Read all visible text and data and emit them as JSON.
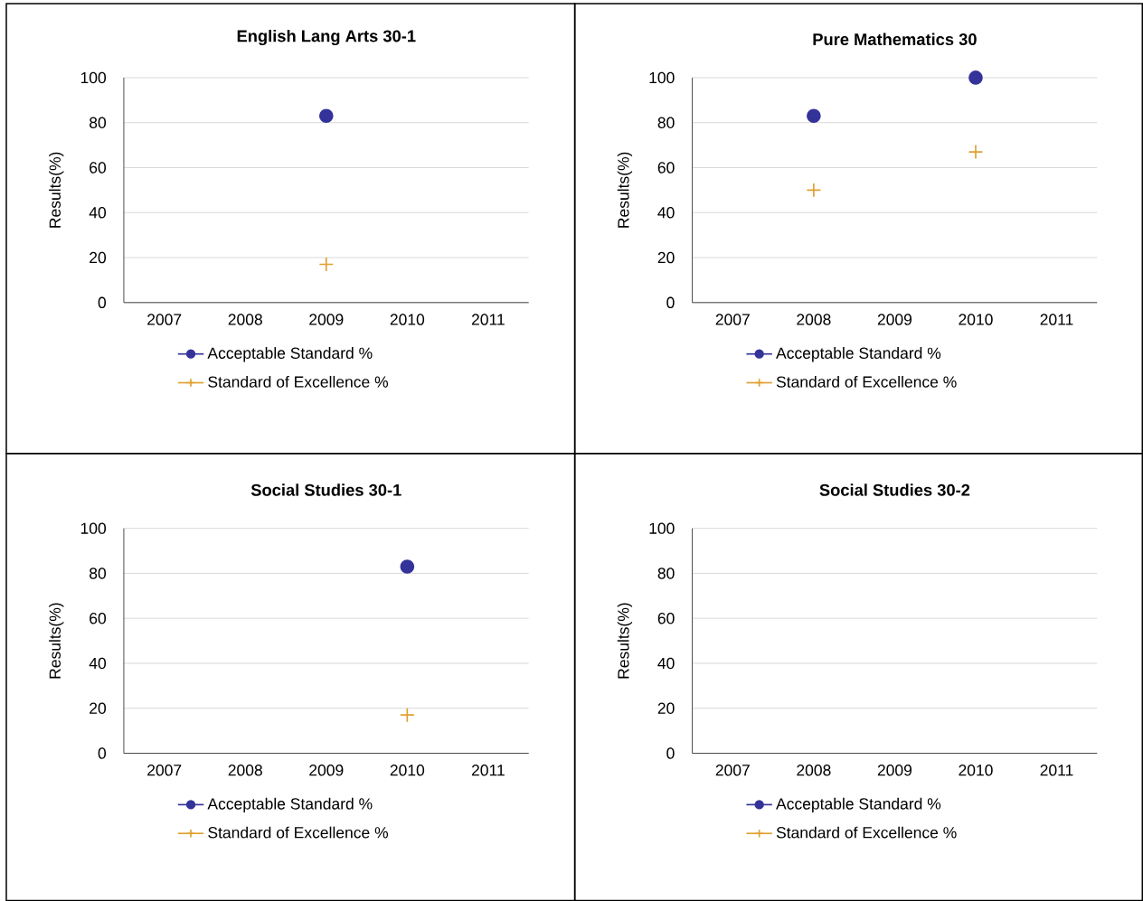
{
  "chart_data": [
    {
      "type": "scatter",
      "title": "English Lang Arts 30-1",
      "ylabel": "Results(%)",
      "categories": [
        "2007",
        "2008",
        "2009",
        "2010",
        "2011"
      ],
      "ylim": [
        0,
        100
      ],
      "yticks": [
        0,
        20,
        40,
        60,
        80,
        100
      ],
      "grid": "y",
      "legend": "bottom",
      "series": [
        {
          "name": "Acceptable Standard %",
          "color": "#333399",
          "marker": "circle",
          "values": [
            null,
            null,
            83,
            null,
            null
          ]
        },
        {
          "name": "Standard of Excellence %",
          "color": "#e0a030",
          "marker": "cross",
          "values": [
            null,
            null,
            17,
            null,
            null
          ]
        }
      ]
    },
    {
      "type": "scatter",
      "title": "Pure Mathematics 30",
      "ylabel": "Results(%)",
      "categories": [
        "2007",
        "2008",
        "2009",
        "2010",
        "2011"
      ],
      "ylim": [
        0,
        100
      ],
      "yticks": [
        0,
        20,
        40,
        60,
        80,
        100
      ],
      "grid": "y",
      "legend": "bottom",
      "series": [
        {
          "name": "Acceptable Standard %",
          "color": "#333399",
          "marker": "circle",
          "values": [
            null,
            83,
            null,
            100,
            null
          ]
        },
        {
          "name": "Standard of Excellence %",
          "color": "#e0a030",
          "marker": "cross",
          "values": [
            null,
            50,
            null,
            67,
            null
          ]
        }
      ]
    },
    {
      "type": "scatter",
      "title": "Social Studies 30-1",
      "ylabel": "Results(%)",
      "categories": [
        "2007",
        "2008",
        "2009",
        "2010",
        "2011"
      ],
      "ylim": [
        0,
        100
      ],
      "yticks": [
        0,
        20,
        40,
        60,
        80,
        100
      ],
      "grid": "y",
      "legend": "bottom",
      "series": [
        {
          "name": "Acceptable Standard %",
          "color": "#333399",
          "marker": "circle",
          "values": [
            null,
            null,
            null,
            83,
            null
          ]
        },
        {
          "name": "Standard of Excellence %",
          "color": "#e0a030",
          "marker": "cross",
          "values": [
            null,
            null,
            null,
            17,
            null
          ]
        }
      ]
    },
    {
      "type": "scatter",
      "title": "Social Studies 30-2",
      "ylabel": "Results(%)",
      "categories": [
        "2007",
        "2008",
        "2009",
        "2010",
        "2011"
      ],
      "ylim": [
        0,
        100
      ],
      "yticks": [
        0,
        20,
        40,
        60,
        80,
        100
      ],
      "grid": "y",
      "legend": "bottom",
      "series": [
        {
          "name": "Acceptable Standard %",
          "color": "#333399",
          "marker": "circle",
          "values": [
            null,
            null,
            null,
            null,
            null
          ]
        },
        {
          "name": "Standard of Excellence %",
          "color": "#e0a030",
          "marker": "cross",
          "values": [
            null,
            null,
            null,
            null,
            null
          ]
        }
      ]
    }
  ]
}
